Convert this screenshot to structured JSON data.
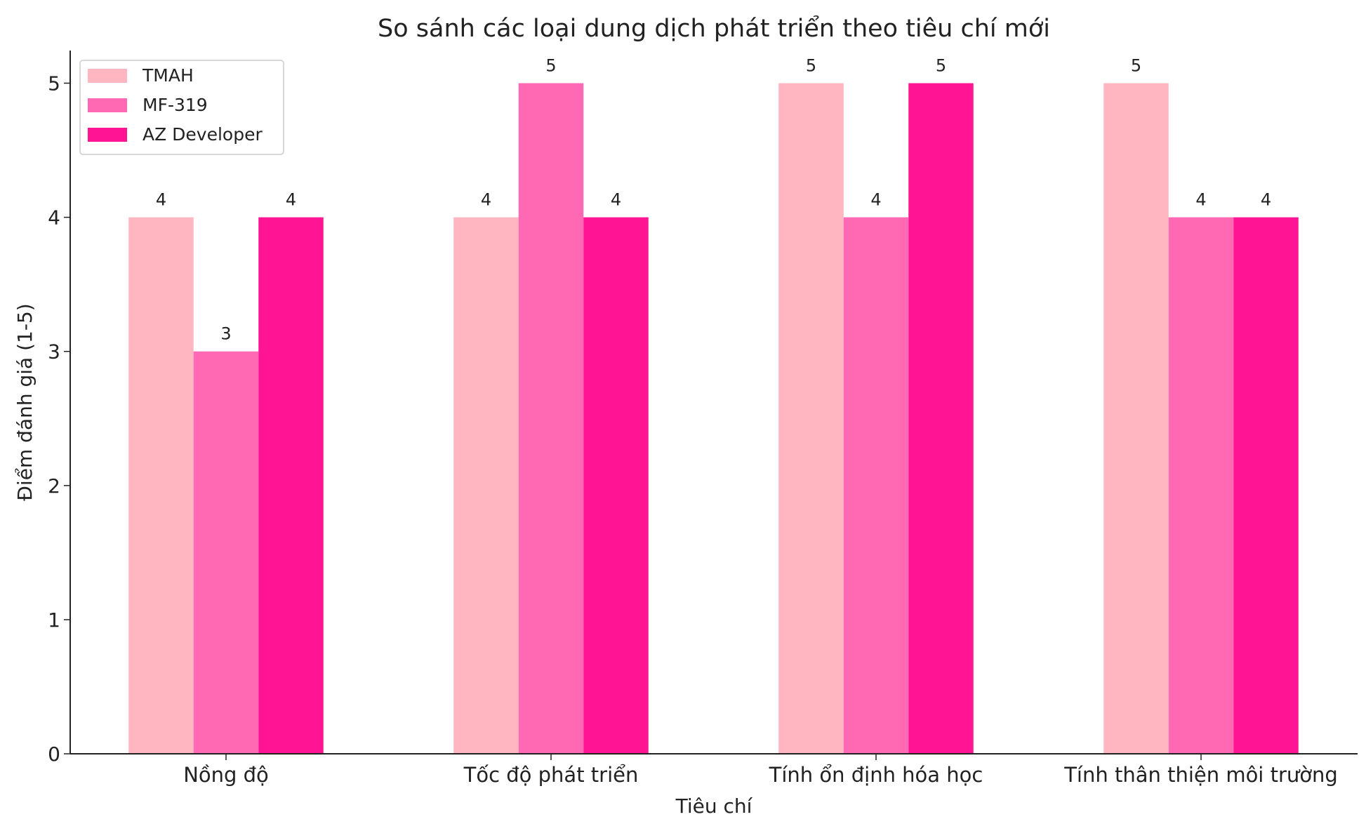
{
  "chart_data": {
    "type": "bar",
    "title": "So sánh các loại dung dịch phát triển theo tiêu chí mới",
    "xlabel": "Tiêu chí",
    "ylabel": "Điểm đánh giá (1-5)",
    "categories": [
      "Nồng độ",
      "Tốc độ phát triển",
      "Tính ổn định hóa học",
      "Tính thân thiện môi trường"
    ],
    "series": [
      {
        "name": "TMAH",
        "color": "#FFB6C1",
        "values": [
          4,
          4,
          5,
          5
        ]
      },
      {
        "name": "MF-319",
        "color": "#FF69B4",
        "values": [
          3,
          5,
          4,
          4
        ]
      },
      {
        "name": "AZ Developer",
        "color": "#FF1493",
        "values": [
          4,
          4,
          5,
          4
        ]
      }
    ],
    "ylim": [
      0,
      5.25
    ],
    "yticks": [
      0,
      1,
      2,
      3,
      4,
      5
    ],
    "grid": false,
    "legend_position": "top-left",
    "data_labels": true
  }
}
